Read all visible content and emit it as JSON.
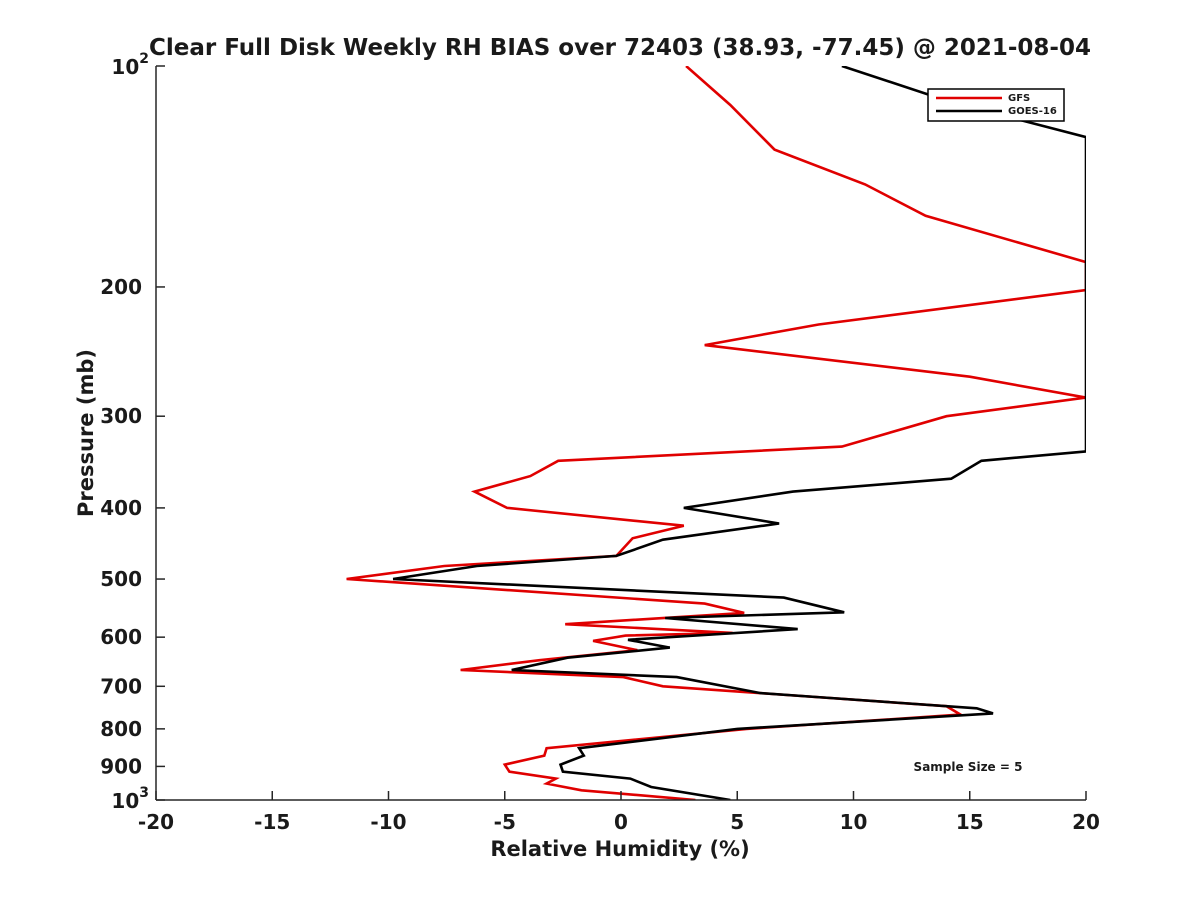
{
  "chart_data": {
    "type": "line",
    "title": "Clear Full Disk Weekly RH BIAS over 72403 (38.93, -77.45) @ 2021-08-04",
    "xlabel": "Relative Humidity (%)",
    "ylabel": "Pressure (mb)",
    "xlim": [
      -20,
      20
    ],
    "ylim": [
      100,
      1000
    ],
    "yscale": "log",
    "y_reversed": true,
    "xticks": [
      "-20",
      "-15",
      "-10",
      "-5",
      "0",
      "5",
      "10",
      "15",
      "20"
    ],
    "yticks": [
      {
        "value": 100,
        "base": "10",
        "exp": "2"
      },
      {
        "value": 200,
        "base": "200",
        "exp": ""
      },
      {
        "value": 300,
        "base": "300",
        "exp": ""
      },
      {
        "value": 400,
        "base": "400",
        "exp": ""
      },
      {
        "value": 500,
        "base": "500",
        "exp": ""
      },
      {
        "value": 600,
        "base": "600",
        "exp": ""
      },
      {
        "value": 700,
        "base": "700",
        "exp": ""
      },
      {
        "value": 800,
        "base": "800",
        "exp": ""
      },
      {
        "value": 900,
        "base": "900",
        "exp": ""
      },
      {
        "value": 1000,
        "base": "10",
        "exp": "3"
      }
    ],
    "grid": false,
    "legend_position": "top-right",
    "annotation": "Sample Size = 5",
    "series": [
      {
        "name": "GFS",
        "color": "#e00000",
        "points": [
          [
            2.8,
            100
          ],
          [
            4.7,
            113
          ],
          [
            6.6,
            130
          ],
          [
            10.5,
            145
          ],
          [
            13.1,
            160
          ],
          [
            20.0,
            185
          ],
          [
            20.0,
            202
          ],
          [
            8.5,
            225
          ],
          [
            3.6,
            240
          ],
          [
            15.0,
            265
          ],
          [
            20.0,
            283
          ],
          [
            14.0,
            300
          ],
          [
            9.5,
            330
          ],
          [
            -2.7,
            345
          ],
          [
            -3.9,
            362
          ],
          [
            -6.3,
            380
          ],
          [
            -4.9,
            400
          ],
          [
            2.7,
            423
          ],
          [
            0.5,
            440
          ],
          [
            -0.2,
            465
          ],
          [
            -7.6,
            480
          ],
          [
            -11.8,
            500
          ],
          [
            3.6,
            540
          ],
          [
            5.3,
            556
          ],
          [
            -2.4,
            576
          ],
          [
            4.8,
            592
          ],
          [
            0.2,
            597
          ],
          [
            -1.2,
            607
          ],
          [
            0.7,
            625
          ],
          [
            -3.5,
            645
          ],
          [
            -6.9,
            665
          ],
          [
            0.1,
            680
          ],
          [
            1.8,
            700
          ],
          [
            14.0,
            745
          ],
          [
            14.6,
            765
          ],
          [
            5.4,
            800
          ],
          [
            -3.2,
            850
          ],
          [
            -3.3,
            870
          ],
          [
            -5.0,
            895
          ],
          [
            -4.8,
            915
          ],
          [
            -2.8,
            935
          ],
          [
            -3.2,
            950
          ],
          [
            -1.7,
            970
          ],
          [
            3.2,
            1000
          ]
        ]
      },
      {
        "name": "GOES-16",
        "color": "#000000",
        "points": [
          [
            9.5,
            100
          ],
          [
            14.2,
            112
          ],
          [
            20.0,
            125
          ],
          [
            20.0,
            335
          ],
          [
            15.5,
            345
          ],
          [
            14.2,
            365
          ],
          [
            7.4,
            380
          ],
          [
            2.7,
            400
          ],
          [
            6.8,
            420
          ],
          [
            1.8,
            442
          ],
          [
            -0.2,
            465
          ],
          [
            -6.2,
            480
          ],
          [
            -9.8,
            500
          ],
          [
            7.0,
            530
          ],
          [
            9.6,
            555
          ],
          [
            1.9,
            565
          ],
          [
            7.6,
            585
          ],
          [
            0.3,
            605
          ],
          [
            2.1,
            620
          ],
          [
            -2.3,
            640
          ],
          [
            -4.7,
            665
          ],
          [
            2.4,
            680
          ],
          [
            6.0,
            715
          ],
          [
            8.7,
            725
          ],
          [
            15.3,
            750
          ],
          [
            16.0,
            762
          ],
          [
            5.0,
            800
          ],
          [
            -1.8,
            850
          ],
          [
            -1.6,
            870
          ],
          [
            -2.6,
            895
          ],
          [
            -2.5,
            915
          ],
          [
            0.4,
            935
          ],
          [
            1.3,
            960
          ],
          [
            4.7,
            1000
          ]
        ]
      }
    ]
  }
}
